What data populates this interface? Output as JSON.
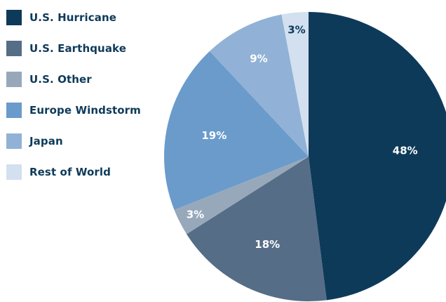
{
  "chart_data": {
    "type": "pie",
    "title": "",
    "categories": [
      "U.S. Hurricane",
      "U.S. Earthquake",
      "U.S. Other",
      "Europe Windstorm",
      "Japan",
      "Rest of World"
    ],
    "values": [
      48,
      18,
      3,
      19,
      9,
      3
    ],
    "labels": [
      "48%",
      "18%",
      "3%",
      "19%",
      "9%",
      "3%"
    ],
    "colors": [
      "#0e3a5a",
      "#556d86",
      "#98a8bb",
      "#6a9bcb",
      "#91b2d6",
      "#d2e0ef"
    ],
    "label_colors": [
      "#ffffff",
      "#ffffff",
      "#ffffff",
      "#ffffff",
      "#ffffff",
      "#0e3a5a"
    ],
    "start_angle_deg": 0,
    "direction": "clockwise",
    "legend_position": "left"
  }
}
